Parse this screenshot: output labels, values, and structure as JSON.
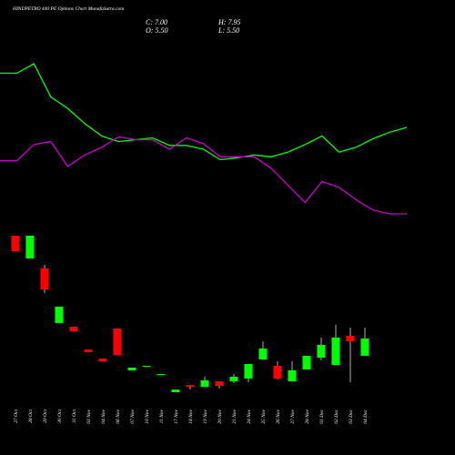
{
  "chart_data": {
    "type": "candlestick",
    "title": "HINDPETRO 440 PE Options Chart MunafaSutra.com",
    "summary": {
      "close_label": "C: 7.00",
      "high_label": "H: 7.95",
      "open_label": "O: 5.50",
      "low_label": "L: 5.50"
    },
    "up_color": "#00ff00",
    "down_color": "#ff0000",
    "categories": [
      "27 Oct",
      "28 Oct",
      "29 Oct",
      "30 Oct",
      "31 Oct",
      "03 Nov",
      "04 Nov",
      "06 Nov",
      "07 Nov",
      "10 Nov",
      "11 Nov",
      "17 Nov",
      "18 Nov",
      "19 Nov",
      "20 Nov",
      "21 Nov",
      "24 Nov",
      "25 Nov",
      "26 Nov",
      "27 Nov",
      "28 Nov",
      "01 Dec",
      "02 Dec",
      "03 Dec",
      "04 Dec"
    ],
    "open": [
      15.93,
      13.95,
      13.09,
      8.35,
      8.03,
      6.05,
      5.26,
      7.87,
      4.24,
      4.55,
      3.84,
      2.34,
      2.97,
      2.81,
      3.29,
      3.29,
      3.53,
      5.19,
      4.63,
      3.29,
      4.32,
      5.34,
      4.71,
      7.24,
      5.5
    ],
    "high": [
      15.93,
      15.93,
      13.4,
      9.77,
      8.03,
      6.05,
      5.26,
      7.87,
      4.47,
      4.63,
      3.92,
      2.57,
      2.97,
      3.68,
      3.29,
      3.92,
      4.79,
      6.76,
      5.03,
      5.03,
      5.5,
      7.08,
      8.19,
      7.95,
      7.95
    ],
    "low": [
      14.59,
      13.95,
      10.95,
      8.35,
      7.63,
      5.82,
      5.03,
      5.58,
      4.24,
      4.55,
      3.84,
      2.34,
      2.57,
      2.81,
      2.66,
      3.13,
      3.21,
      5.19,
      3.45,
      3.29,
      4.32,
      5.11,
      4.71,
      3.21,
      5.5
    ],
    "close": [
      14.59,
      15.93,
      11.27,
      9.77,
      7.63,
      5.82,
      5.03,
      5.58,
      4.47,
      4.63,
      3.92,
      2.57,
      2.81,
      3.37,
      2.89,
      3.68,
      4.79,
      6.13,
      3.53,
      4.24,
      5.5,
      6.45,
      7.08,
      6.76,
      7.0
    ],
    "overlays": [
      {
        "color": "#00ff00",
        "values": [
          160,
          160,
          170,
          135,
          123,
          107,
          94,
          88,
          90,
          92,
          84,
          84,
          80,
          69,
          71,
          74,
          72,
          77,
          85,
          94,
          77,
          82,
          91,
          98,
          103
        ]
      },
      {
        "color": "#cc00cc",
        "values": [
          68,
          68,
          85,
          88,
          62,
          74,
          82,
          93,
          90,
          90,
          80,
          92,
          86,
          72,
          72,
          72,
          60,
          42,
          24,
          46,
          40,
          27,
          16,
          12,
          12
        ]
      }
    ]
  }
}
